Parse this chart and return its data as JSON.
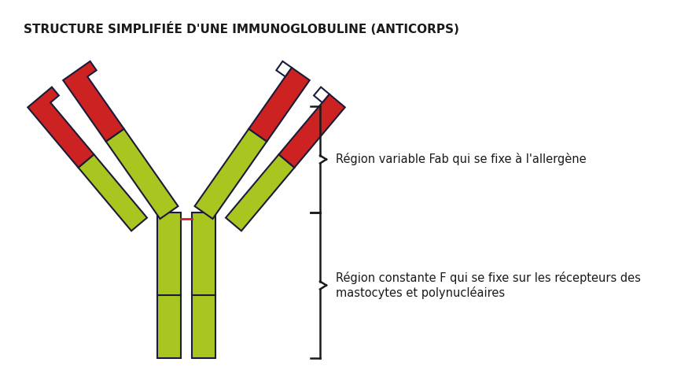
{
  "title": "STRUCTURE SIMPLIFIÉE D'UNE IMMUNOGLOBULINE (ANTICORPS)",
  "title_fontsize": 11,
  "title_fontweight": "bold",
  "title_color": "#1a1a1a",
  "bg_color": "#ffffff",
  "lime_color": "#a8c520",
  "red_color": "#cc2222",
  "outline_color": "#1a1a3a",
  "red_link_color": "#cc2222",
  "label1": "Région variable Fab qui se fixe à l'allergène",
  "label2": "Région constante F qui se fixe sur les récepteurs des\nmastocytes et polynucléaires",
  "label_fontsize": 10.5,
  "fig_w": 8.8,
  "fig_h": 4.79,
  "dpi": 100
}
